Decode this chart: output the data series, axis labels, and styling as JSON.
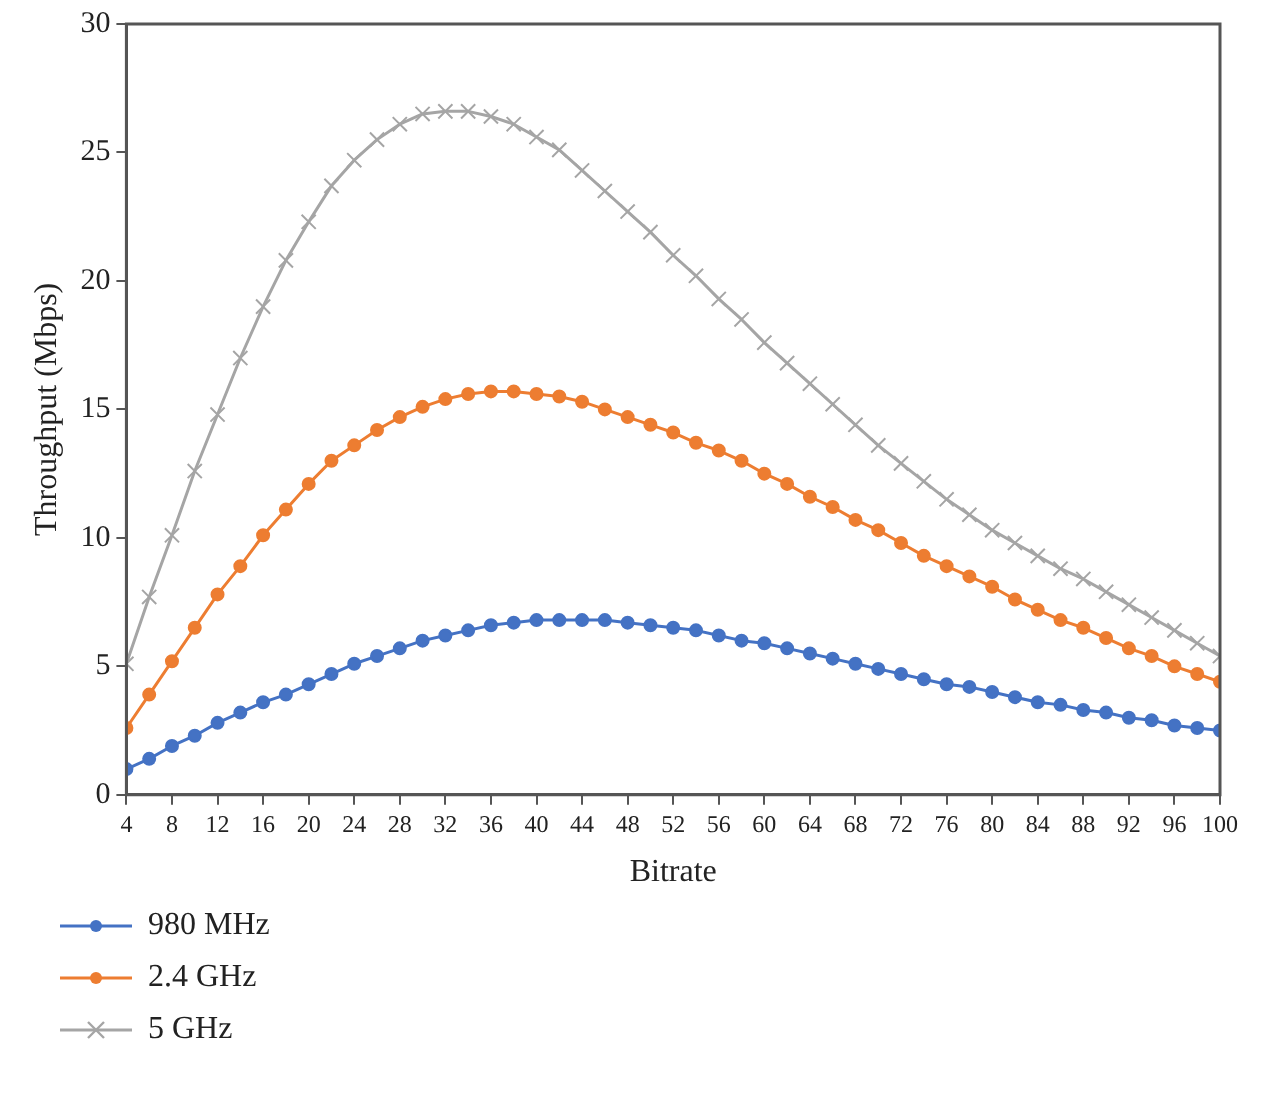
{
  "chart_data": {
    "type": "line",
    "xlabel": "Bitrate",
    "ylabel": "Throughput (Mbps)",
    "x": [
      4,
      6,
      8,
      10,
      12,
      14,
      16,
      18,
      20,
      22,
      24,
      26,
      28,
      30,
      32,
      34,
      36,
      38,
      40,
      42,
      44,
      46,
      48,
      50,
      52,
      54,
      56,
      58,
      60,
      62,
      64,
      66,
      68,
      70,
      72,
      74,
      76,
      78,
      80,
      82,
      84,
      86,
      88,
      90,
      92,
      94,
      96,
      98,
      100
    ],
    "xlim": [
      4,
      100
    ],
    "xticks": [
      4,
      8,
      12,
      16,
      20,
      24,
      28,
      32,
      36,
      40,
      44,
      48,
      52,
      56,
      60,
      64,
      68,
      72,
      76,
      80,
      84,
      88,
      92,
      96,
      100
    ],
    "ylim": [
      0,
      30
    ],
    "yticks": [
      0,
      5,
      10,
      15,
      20,
      25,
      30
    ],
    "grid": false,
    "legend": "bottom left",
    "line_style": "solid",
    "series": [
      {
        "name": "980 MHz",
        "color": "#4472c4",
        "marker": "circle",
        "values": [
          1.0,
          1.4,
          1.9,
          2.3,
          2.8,
          3.2,
          3.6,
          3.9,
          4.3,
          4.7,
          5.1,
          5.4,
          5.7,
          6.0,
          6.2,
          6.4,
          6.6,
          6.7,
          6.8,
          6.8,
          6.8,
          6.8,
          6.7,
          6.6,
          6.5,
          6.4,
          6.2,
          6.0,
          5.9,
          5.7,
          5.5,
          5.3,
          5.1,
          4.9,
          4.7,
          4.5,
          4.3,
          4.2,
          4.0,
          3.8,
          3.6,
          3.5,
          3.3,
          3.2,
          3.0,
          2.9,
          2.7,
          2.6,
          2.5
        ]
      },
      {
        "name": "2.4 GHz",
        "color": "#ed7d31",
        "marker": "circle",
        "values": [
          2.6,
          3.9,
          5.2,
          6.5,
          7.8,
          8.9,
          10.1,
          11.1,
          12.1,
          13.0,
          13.6,
          14.2,
          14.7,
          15.1,
          15.4,
          15.6,
          15.7,
          15.7,
          15.6,
          15.5,
          15.3,
          15.0,
          14.7,
          14.4,
          14.1,
          13.7,
          13.4,
          13.0,
          12.5,
          12.1,
          11.6,
          11.2,
          10.7,
          10.3,
          9.8,
          9.3,
          8.9,
          8.5,
          8.1,
          7.6,
          7.2,
          6.8,
          6.5,
          6.1,
          5.7,
          5.4,
          5.0,
          4.7,
          4.4
        ]
      },
      {
        "name": "5 GHz",
        "color": "#a5a5a5",
        "marker": "cross",
        "values": [
          5.1,
          7.7,
          10.1,
          12.6,
          14.8,
          17.0,
          19.0,
          20.8,
          22.3,
          23.7,
          24.7,
          25.5,
          26.1,
          26.5,
          26.6,
          26.6,
          26.4,
          26.1,
          25.6,
          25.1,
          24.3,
          23.5,
          22.7,
          21.9,
          21.0,
          20.2,
          19.3,
          18.5,
          17.6,
          16.8,
          16.0,
          15.2,
          14.4,
          13.6,
          12.9,
          12.2,
          11.5,
          10.9,
          10.3,
          9.8,
          9.3,
          8.8,
          8.4,
          7.9,
          7.4,
          6.9,
          6.4,
          5.9,
          5.4
        ]
      }
    ]
  }
}
